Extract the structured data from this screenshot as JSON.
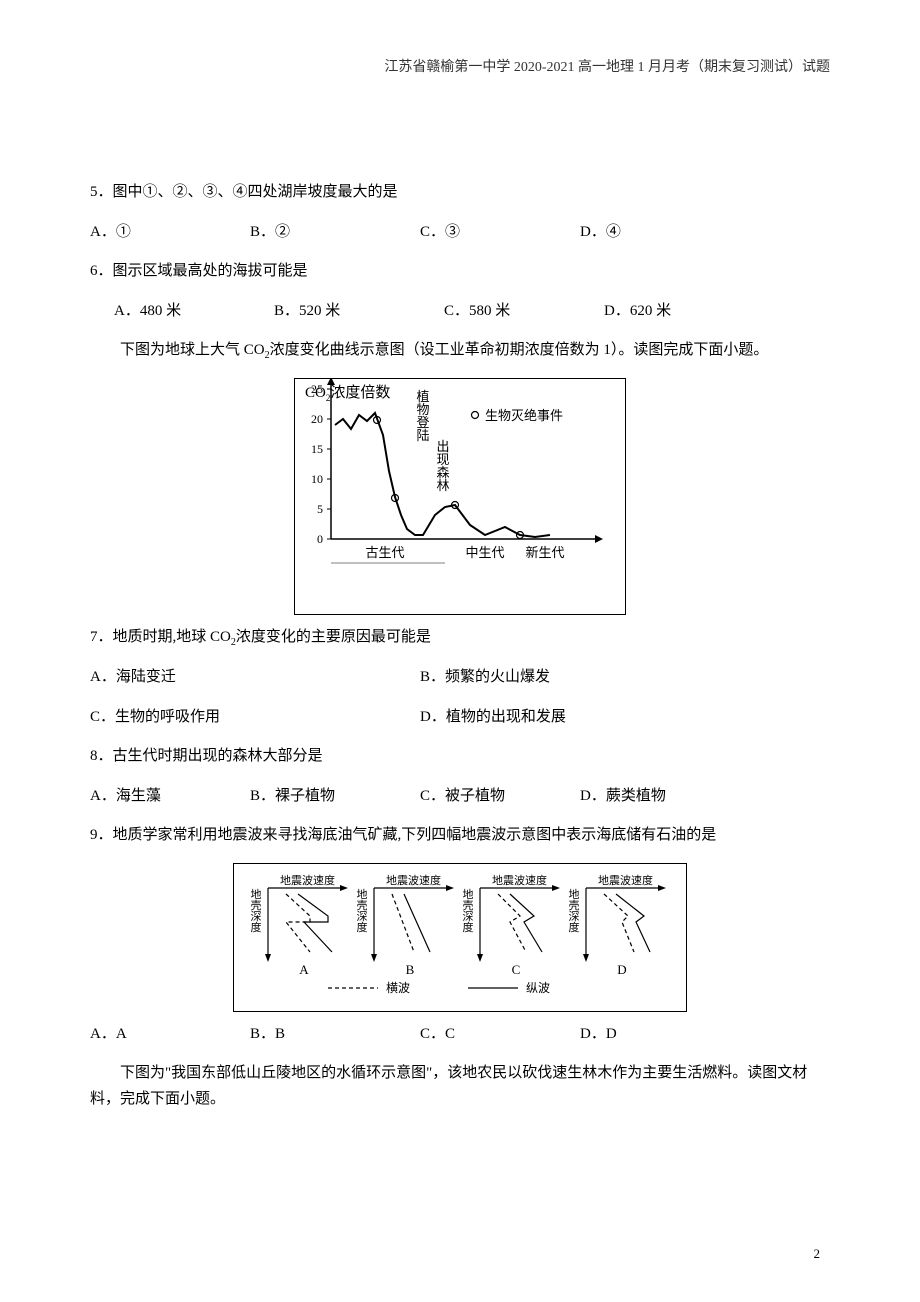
{
  "header": {
    "text": "江苏省赣榆第一中学 2020-2021 高一地理 1 月月考（期末复习测试）试题"
  },
  "q5": {
    "stem": "5．图中①、②、③、④四处湖岸坡度最大的是",
    "opts": {
      "A": "A．①",
      "B": "B．②",
      "C": "C．③",
      "D": "D．④"
    }
  },
  "q6": {
    "stem": "6．图示区域最高处的海拔可能是",
    "opts": {
      "A": "A．480 米",
      "B": "B．520 米",
      "C": "C．580 米",
      "D": "D．620 米"
    }
  },
  "intro1_pre": "下图为地球上大气 CO",
  "intro1_post": "浓度变化曲线示意图（设工业革命初期浓度倍数为 1）。读图完成下面小题。",
  "co2_chart": {
    "type": "line",
    "y_axis_title_p1": "CO",
    "y_axis_title_p2": "浓度倍数",
    "y_ticks": [
      0,
      5,
      10,
      15,
      20,
      25
    ],
    "x_labels": [
      "古生代",
      "中生代",
      "新生代"
    ],
    "annotations": {
      "plant_land": "植物登陆",
      "forest": "出现森林",
      "extinct": "生物灭绝事件",
      "extinct_marker": "○"
    },
    "curve_points": [
      [
        40,
        40
      ],
      [
        48,
        34
      ],
      [
        56,
        44
      ],
      [
        64,
        30
      ],
      [
        72,
        36
      ],
      [
        80,
        28
      ],
      [
        88,
        50
      ],
      [
        94,
        86
      ],
      [
        100,
        112
      ],
      [
        106,
        130
      ],
      [
        112,
        144
      ],
      [
        120,
        150
      ],
      [
        128,
        150
      ],
      [
        140,
        130
      ],
      [
        150,
        122
      ],
      [
        160,
        120
      ],
      [
        175,
        140
      ],
      [
        190,
        150
      ],
      [
        210,
        142
      ],
      [
        225,
        150
      ],
      [
        240,
        152
      ],
      [
        255,
        150
      ]
    ],
    "events": [
      [
        82,
        35
      ],
      [
        100,
        113
      ],
      [
        160,
        120
      ],
      [
        225,
        150
      ]
    ],
    "colors": {
      "line": "#000000",
      "bg": "#ffffff",
      "axis": "#000000",
      "text": "#000000"
    },
    "axis_font": 13,
    "tick_font": 12
  },
  "q7": {
    "stem_pre": "7．地质时期,地球 CO",
    "stem_post": "浓度变化的主要原因最可能是",
    "opts": {
      "A": "A．海陆变迁",
      "B": "B．频繁的火山爆发",
      "C": "C．生物的呼吸作用",
      "D": "D．植物的出现和发展"
    }
  },
  "q8": {
    "stem": "8．古生代时期出现的森林大部分是",
    "opts": {
      "A": "A．海生藻",
      "B": "B．裸子植物",
      "C": "C．被子植物",
      "D": "D．蕨类植物"
    }
  },
  "q9": {
    "stem": "9．地质学家常利用地震波来寻找海底油气矿藏,下列四幅地震波示意图中表示海底储有石油的是",
    "opts": {
      "A": "A．A",
      "B": "B．B",
      "C": "C．C",
      "D": "D．D"
    }
  },
  "wave_chart": {
    "type": "diagram",
    "panels": [
      "A",
      "B",
      "C",
      "D"
    ],
    "x_label": "地震波速度",
    "y_label": "地壳深度",
    "legend": {
      "dashed": "横波",
      "solid": "纵波"
    },
    "colors": {
      "line": "#000",
      "bg": "#fff",
      "text": "#000"
    },
    "font": 12,
    "panel_data": {
      "A": {
        "dashed": [
          [
            18,
            6
          ],
          [
            42,
            28
          ],
          [
            42,
            34
          ],
          [
            18,
            34
          ],
          [
            42,
            64
          ]
        ],
        "solid": [
          [
            30,
            6
          ],
          [
            60,
            28
          ],
          [
            60,
            34
          ],
          [
            36,
            34
          ],
          [
            64,
            64
          ]
        ]
      },
      "B": {
        "dashed": [
          [
            18,
            6
          ],
          [
            40,
            64
          ]
        ],
        "solid": [
          [
            30,
            6
          ],
          [
            56,
            64
          ]
        ]
      },
      "C": {
        "dashed": [
          [
            18,
            6
          ],
          [
            40,
            28
          ],
          [
            30,
            34
          ],
          [
            46,
            64
          ]
        ],
        "solid": [
          [
            30,
            6
          ],
          [
            54,
            28
          ],
          [
            44,
            34
          ],
          [
            62,
            64
          ]
        ]
      },
      "D": {
        "dashed": [
          [
            18,
            6
          ],
          [
            42,
            28
          ],
          [
            36,
            34
          ],
          [
            48,
            64
          ]
        ],
        "solid": [
          [
            30,
            6
          ],
          [
            58,
            28
          ],
          [
            50,
            34
          ],
          [
            64,
            64
          ]
        ]
      }
    }
  },
  "intro2": "下图为\"我国东部低山丘陵地区的水循环示意图\"，该地农民以砍伐速生林木作为主要生活燃料。读图文材料，完成下面小题。",
  "page_number": "2"
}
